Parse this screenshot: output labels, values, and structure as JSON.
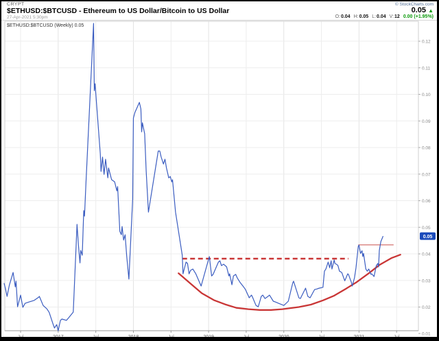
{
  "header": {
    "workspace_label": "CRYPT",
    "title": "$ETHUSD:$BTCUSD - Ethereum to US Dollar/Bitcoin to US Dollar",
    "timestamp": "27-Apr-2021 5:30pm",
    "copyright": "© StockCharts.com",
    "last_price": "0.05",
    "direction_arrow": "▲",
    "quote_fields": [
      {
        "label": "O:",
        "value": "0.04"
      },
      {
        "label": "H:",
        "value": "0.05"
      },
      {
        "label": "L:",
        "value": "0.04"
      },
      {
        "label": "V:",
        "value": "12"
      }
    ],
    "change_text": "0.00 (+1.95%)"
  },
  "chart": {
    "legend": "$ETHUSD:$BTCUSD (Weekly) 0.05",
    "last_value_badge": "0.05"
  },
  "chart_data": {
    "type": "line",
    "title": "$ETHUSD:$BTCUSD (Weekly)",
    "xlabel": "",
    "ylabel": "",
    "x_unit": "decimal_year",
    "x_range": [
      2016.29,
      2021.79
    ],
    "y_range": [
      0.0111,
      0.1275
    ],
    "grid": true,
    "legend_position": "top-left",
    "colors": {
      "line_blue": "#3a5cc0",
      "annotation_red": "#c93636",
      "breakout_red": "#d4706f",
      "up_green": "#0b9a0b",
      "badge_blue": "#1b4bbb",
      "grid_light": "#ededed",
      "grid_year": "#e3e3e3",
      "plot_border": "#cfcfcf",
      "axis_text": "#888888"
    },
    "y_ticks": [
      {
        "v": 0.01,
        "label": "0.01"
      },
      {
        "v": 0.02,
        "label": "0.02"
      },
      {
        "v": 0.03,
        "label": "0.03"
      },
      {
        "v": 0.04,
        "label": "0.04"
      },
      {
        "v": 0.05,
        "label": "0.05"
      },
      {
        "v": 0.06,
        "label": "0.06"
      },
      {
        "v": 0.07,
        "label": "0.07"
      },
      {
        "v": 0.08,
        "label": "0.08"
      },
      {
        "v": 0.09,
        "label": "0.09"
      },
      {
        "v": 0.1,
        "label": "0.10"
      },
      {
        "v": 0.11,
        "label": "0.11"
      },
      {
        "v": 0.12,
        "label": "0.12"
      }
    ],
    "x_ticks": [
      {
        "v": 2016.5,
        "label": "Jul",
        "year": false
      },
      {
        "v": 2017.0,
        "label": "2017",
        "year": true
      },
      {
        "v": 2017.5,
        "label": "Jul",
        "year": false
      },
      {
        "v": 2018.0,
        "label": "2018",
        "year": true
      },
      {
        "v": 2018.5,
        "label": "Jul",
        "year": false
      },
      {
        "v": 2019.0,
        "label": "2019",
        "year": true
      },
      {
        "v": 2019.5,
        "label": "Jul",
        "year": false
      },
      {
        "v": 2020.0,
        "label": "2020",
        "year": true
      },
      {
        "v": 2020.5,
        "label": "Jul",
        "year": false
      },
      {
        "v": 2021.0,
        "label": "2021",
        "year": true
      },
      {
        "v": 2021.5,
        "label": "Jul",
        "year": false
      }
    ],
    "series": [
      {
        "name": "$ETHUSD:$BTCUSD (Weekly)",
        "points": [
          [
            2016.28,
            0.029
          ],
          [
            2016.3,
            0.0268
          ],
          [
            2016.32,
            0.024
          ],
          [
            2016.35,
            0.0282
          ],
          [
            2016.4,
            0.033
          ],
          [
            2016.43,
            0.0276
          ],
          [
            2016.44,
            0.0297
          ],
          [
            2016.46,
            0.0201
          ],
          [
            2016.5,
            0.0245
          ],
          [
            2016.53,
            0.0199
          ],
          [
            2016.56,
            0.0214
          ],
          [
            2016.61,
            0.0219
          ],
          [
            2016.68,
            0.0225
          ],
          [
            2016.74,
            0.0237
          ],
          [
            2016.75,
            0.024
          ],
          [
            2016.8,
            0.0206
          ],
          [
            2016.85,
            0.0193
          ],
          [
            2016.88,
            0.018
          ],
          [
            2016.93,
            0.0137
          ],
          [
            2016.95,
            0.0121
          ],
          [
            2016.98,
            0.0134
          ],
          [
            2017.0,
            0.0111
          ],
          [
            2017.03,
            0.015
          ],
          [
            2017.05,
            0.0155
          ],
          [
            2017.11,
            0.015
          ],
          [
            2017.14,
            0.016
          ],
          [
            2017.2,
            0.0181
          ],
          [
            2017.25,
            0.0511
          ],
          [
            2017.27,
            0.0431
          ],
          [
            2017.29,
            0.0366
          ],
          [
            2017.3,
            0.0413
          ],
          [
            2017.32,
            0.0395
          ],
          [
            2017.34,
            0.0563
          ],
          [
            2017.35,
            0.0542
          ],
          [
            2017.37,
            0.0671
          ],
          [
            2017.47,
            0.1267
          ],
          [
            2017.48,
            0.1014
          ],
          [
            2017.49,
            0.104
          ],
          [
            2017.56,
            0.0777
          ],
          [
            2017.57,
            0.071
          ],
          [
            2017.59,
            0.0764
          ],
          [
            2017.61,
            0.0699
          ],
          [
            2017.63,
            0.0756
          ],
          [
            2017.66,
            0.0686
          ],
          [
            2017.67,
            0.0723
          ],
          [
            2017.71,
            0.0679
          ],
          [
            2017.75,
            0.0671
          ],
          [
            2017.78,
            0.0637
          ],
          [
            2017.79,
            0.0653
          ],
          [
            2017.82,
            0.0485
          ],
          [
            2017.84,
            0.0472
          ],
          [
            2017.85,
            0.0503
          ],
          [
            2017.87,
            0.0452
          ],
          [
            2017.89,
            0.0472
          ],
          [
            2017.91,
            0.0395
          ],
          [
            2017.94,
            0.0305
          ],
          [
            2017.99,
            0.0606
          ],
          [
            2018.0,
            0.0911
          ],
          [
            2018.02,
            0.0932
          ],
          [
            2018.08,
            0.097
          ],
          [
            2018.1,
            0.0945
          ],
          [
            2018.11,
            0.0859
          ],
          [
            2018.12,
            0.0893
          ],
          [
            2018.15,
            0.0852
          ],
          [
            2018.17,
            0.0712
          ],
          [
            2018.2,
            0.0557
          ],
          [
            2018.33,
            0.0787
          ],
          [
            2018.35,
            0.0787
          ],
          [
            2018.37,
            0.0764
          ],
          [
            2018.4,
            0.0738
          ],
          [
            2018.42,
            0.0756
          ],
          [
            2018.44,
            0.0723
          ],
          [
            2018.47,
            0.0686
          ],
          [
            2018.49,
            0.0691
          ],
          [
            2018.51,
            0.0671
          ],
          [
            2018.52,
            0.0679
          ],
          [
            2018.56,
            0.0557
          ],
          [
            2018.65,
            0.0395
          ],
          [
            2018.66,
            0.0325
          ],
          [
            2018.7,
            0.0369
          ],
          [
            2018.72,
            0.0364
          ],
          [
            2018.74,
            0.0325
          ],
          [
            2018.76,
            0.0338
          ],
          [
            2018.79,
            0.0343
          ],
          [
            2018.83,
            0.0325
          ],
          [
            2018.9,
            0.0279
          ],
          [
            2019.01,
            0.039
          ],
          [
            2019.04,
            0.0317
          ],
          [
            2019.06,
            0.0323
          ],
          [
            2019.13,
            0.0369
          ],
          [
            2019.15,
            0.0374
          ],
          [
            2019.17,
            0.0356
          ],
          [
            2019.2,
            0.0361
          ],
          [
            2019.24,
            0.0351
          ],
          [
            2019.27,
            0.0317
          ],
          [
            2019.28,
            0.0325
          ],
          [
            2019.31,
            0.0284
          ],
          [
            2019.33,
            0.0317
          ],
          [
            2019.36,
            0.0323
          ],
          [
            2019.38,
            0.031
          ],
          [
            2019.42,
            0.0292
          ],
          [
            2019.47,
            0.0274
          ],
          [
            2019.49,
            0.0266
          ],
          [
            2019.54,
            0.0235
          ],
          [
            2019.57,
            0.0245
          ],
          [
            2019.58,
            0.024
          ],
          [
            2019.63,
            0.0206
          ],
          [
            2019.66,
            0.0201
          ],
          [
            2019.7,
            0.024
          ],
          [
            2019.72,
            0.0245
          ],
          [
            2019.75,
            0.0232
          ],
          [
            2019.79,
            0.024
          ],
          [
            2019.81,
            0.0245
          ],
          [
            2019.86,
            0.0222
          ],
          [
            2019.89,
            0.0219
          ],
          [
            2019.93,
            0.0214
          ],
          [
            2020.0,
            0.0206
          ],
          [
            2020.06,
            0.0222
          ],
          [
            2020.12,
            0.0292
          ],
          [
            2020.13,
            0.0297
          ],
          [
            2020.2,
            0.0235
          ],
          [
            2020.22,
            0.0232
          ],
          [
            2020.29,
            0.0271
          ],
          [
            2020.32,
            0.024
          ],
          [
            2020.35,
            0.0235
          ],
          [
            2020.41,
            0.0266
          ],
          [
            2020.44,
            0.0268
          ],
          [
            2020.47,
            0.0271
          ],
          [
            2020.52,
            0.0274
          ],
          [
            2020.54,
            0.0335
          ],
          [
            2020.56,
            0.0343
          ],
          [
            2020.59,
            0.0369
          ],
          [
            2020.61,
            0.0348
          ],
          [
            2020.63,
            0.0374
          ],
          [
            2020.64,
            0.0343
          ],
          [
            2020.67,
            0.0377
          ],
          [
            2020.68,
            0.0364
          ],
          [
            2020.7,
            0.0361
          ],
          [
            2020.72,
            0.0356
          ],
          [
            2020.74,
            0.0335
          ],
          [
            2020.77,
            0.033
          ],
          [
            2020.81,
            0.0299
          ],
          [
            2020.82,
            0.0305
          ],
          [
            2020.85,
            0.0325
          ],
          [
            2020.86,
            0.0323
          ],
          [
            2020.9,
            0.0292
          ],
          [
            2020.91,
            0.0279
          ],
          [
            2020.94,
            0.031
          ],
          [
            2020.96,
            0.0348
          ],
          [
            2020.99,
            0.0428
          ],
          [
            2021.0,
            0.0433
          ],
          [
            2021.02,
            0.0402
          ],
          [
            2021.04,
            0.0412
          ],
          [
            2021.05,
            0.039
          ],
          [
            2021.06,
            0.0402
          ],
          [
            2021.09,
            0.0343
          ],
          [
            2021.11,
            0.0335
          ],
          [
            2021.13,
            0.0343
          ],
          [
            2021.16,
            0.0323
          ],
          [
            2021.17,
            0.0325
          ],
          [
            2021.2,
            0.0315
          ],
          [
            2021.23,
            0.0356
          ],
          [
            2021.25,
            0.0364
          ],
          [
            2021.26,
            0.0351
          ],
          [
            2021.27,
            0.0413
          ],
          [
            2021.29,
            0.0446
          ],
          [
            2021.32,
            0.0467
          ]
        ]
      }
    ],
    "last_value": 0.0467,
    "annotations": {
      "resistance_dashed": {
        "style": "dashed",
        "value": 0.0382,
        "x_start": 2018.65,
        "x_end": 2020.86
      },
      "breakout_line": {
        "style": "solid-thin",
        "value": 0.0434,
        "x_start": 2020.99,
        "x_end": 2021.46
      },
      "cup_curve": {
        "style": "solid-curve",
        "points": [
          [
            2018.6,
            0.0327
          ],
          [
            2018.76,
            0.0288
          ],
          [
            2018.91,
            0.0252
          ],
          [
            2019.07,
            0.0226
          ],
          [
            2019.22,
            0.021
          ],
          [
            2019.37,
            0.0197
          ],
          [
            2019.53,
            0.0192
          ],
          [
            2019.68,
            0.0189
          ],
          [
            2019.83,
            0.0189
          ],
          [
            2019.98,
            0.0192
          ],
          [
            2020.2,
            0.02
          ],
          [
            2020.36,
            0.0209
          ],
          [
            2020.52,
            0.0225
          ],
          [
            2020.67,
            0.0243
          ],
          [
            2020.82,
            0.0268
          ],
          [
            2020.97,
            0.0294
          ],
          [
            2021.13,
            0.0327
          ],
          [
            2021.27,
            0.0358
          ],
          [
            2021.43,
            0.0384
          ],
          [
            2021.55,
            0.0397
          ]
        ]
      }
    }
  }
}
